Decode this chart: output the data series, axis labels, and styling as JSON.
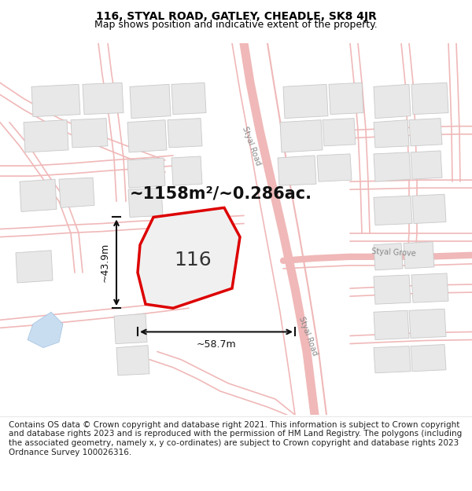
{
  "title_line1": "116, STYAL ROAD, GATLEY, CHEADLE, SK8 4JR",
  "title_line2": "Map shows position and indicative extent of the property.",
  "footer_text": "Contains OS data © Crown copyright and database right 2021. This information is subject to Crown copyright and database rights 2023 and is reproduced with the permission of HM Land Registry. The polygons (including the associated geometry, namely x, y co-ordinates) are subject to Crown copyright and database rights 2023 Ordnance Survey 100026316.",
  "bg_color": "#ffffff",
  "map_bg_color": "#ffffff",
  "road_line_color": "#f0b8b8",
  "building_face_color": "#e8e8e8",
  "building_edge_color": "#c8c8c8",
  "highlight_color": "#dd0000",
  "water_color": "#c8ddf0",
  "area_text": "~1158m²/~0.286ac.",
  "property_label": "116",
  "width_label": "~58.7m",
  "height_label": "~43.9m",
  "styal_road_label": "Styal Road",
  "styal_grove_label": "Styal Grove",
  "title_fontsize": 10,
  "subtitle_fontsize": 9,
  "area_fontsize": 15,
  "label_fontsize": 18,
  "footer_fontsize": 7.5,
  "road_lw": 1.2
}
